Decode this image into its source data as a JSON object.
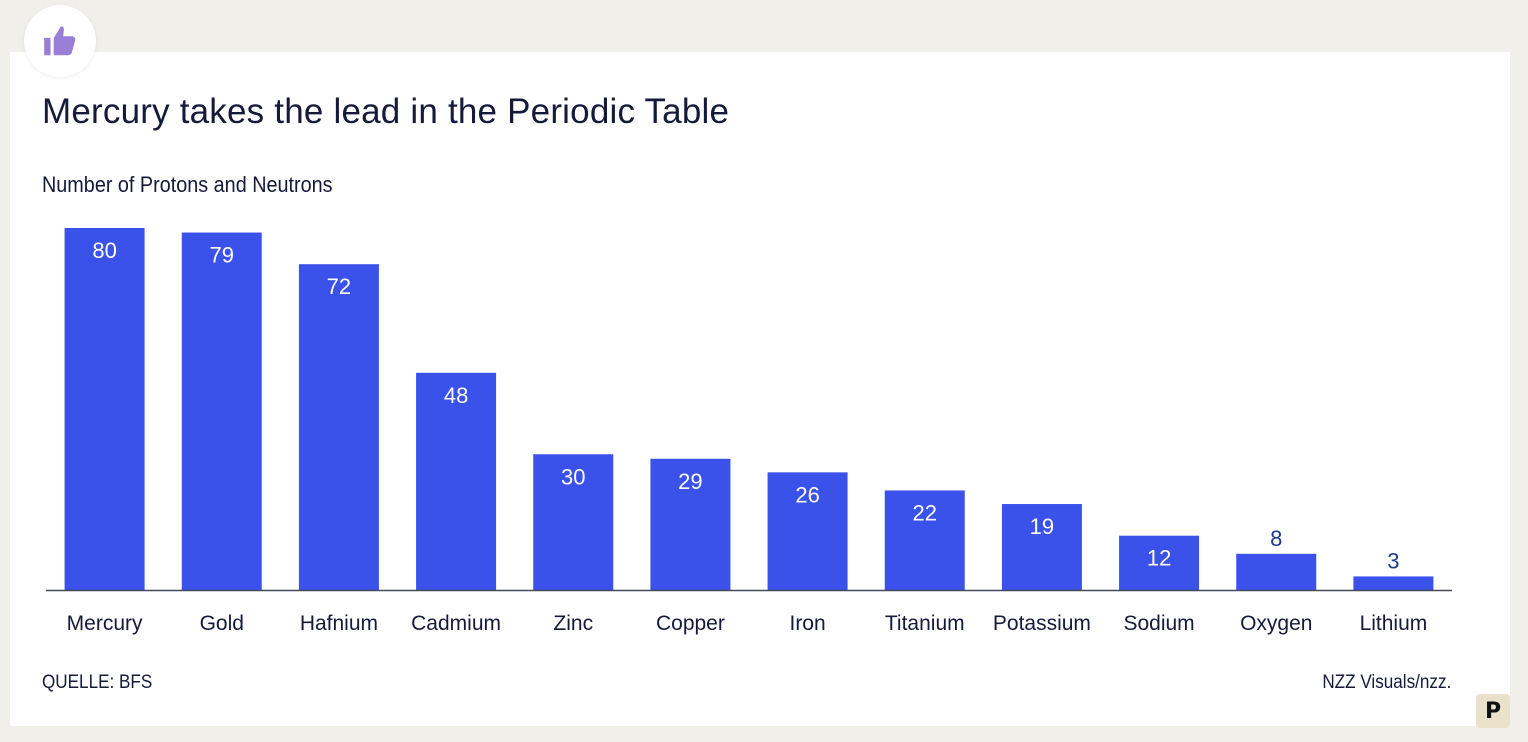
{
  "title": "Mercury takes the lead in the Periodic Table",
  "subtitle": "Number of Protons and Neutrons",
  "source": "QUELLE: BFS",
  "credit": "NZZ Visuals/nzz.",
  "badge_letter": "P",
  "icons": {
    "like": "thumbs-up-icon"
  },
  "colors": {
    "bar": "#3a51ea",
    "bar_label_inside": "#ffffff",
    "bar_label_outside": "#1e3a8a",
    "text": "#151a3a",
    "axis": "#444a5a",
    "like_icon": "#9b7fd6"
  },
  "chart_data": {
    "type": "bar",
    "title": "Mercury takes the lead in the Periodic Table",
    "subtitle": "Number of Protons and Neutrons",
    "categories": [
      "Mercury",
      "Gold",
      "Hafnium",
      "Cadmium",
      "Zinc",
      "Copper",
      "Iron",
      "Titanium",
      "Potassium",
      "Sodium",
      "Oxygen",
      "Lithium"
    ],
    "values": [
      80,
      79,
      72,
      48,
      30,
      29,
      26,
      22,
      19,
      12,
      8,
      3
    ],
    "xlabel": "",
    "ylabel": "",
    "ylim": [
      0,
      80
    ],
    "grid": false,
    "legend": "none"
  }
}
